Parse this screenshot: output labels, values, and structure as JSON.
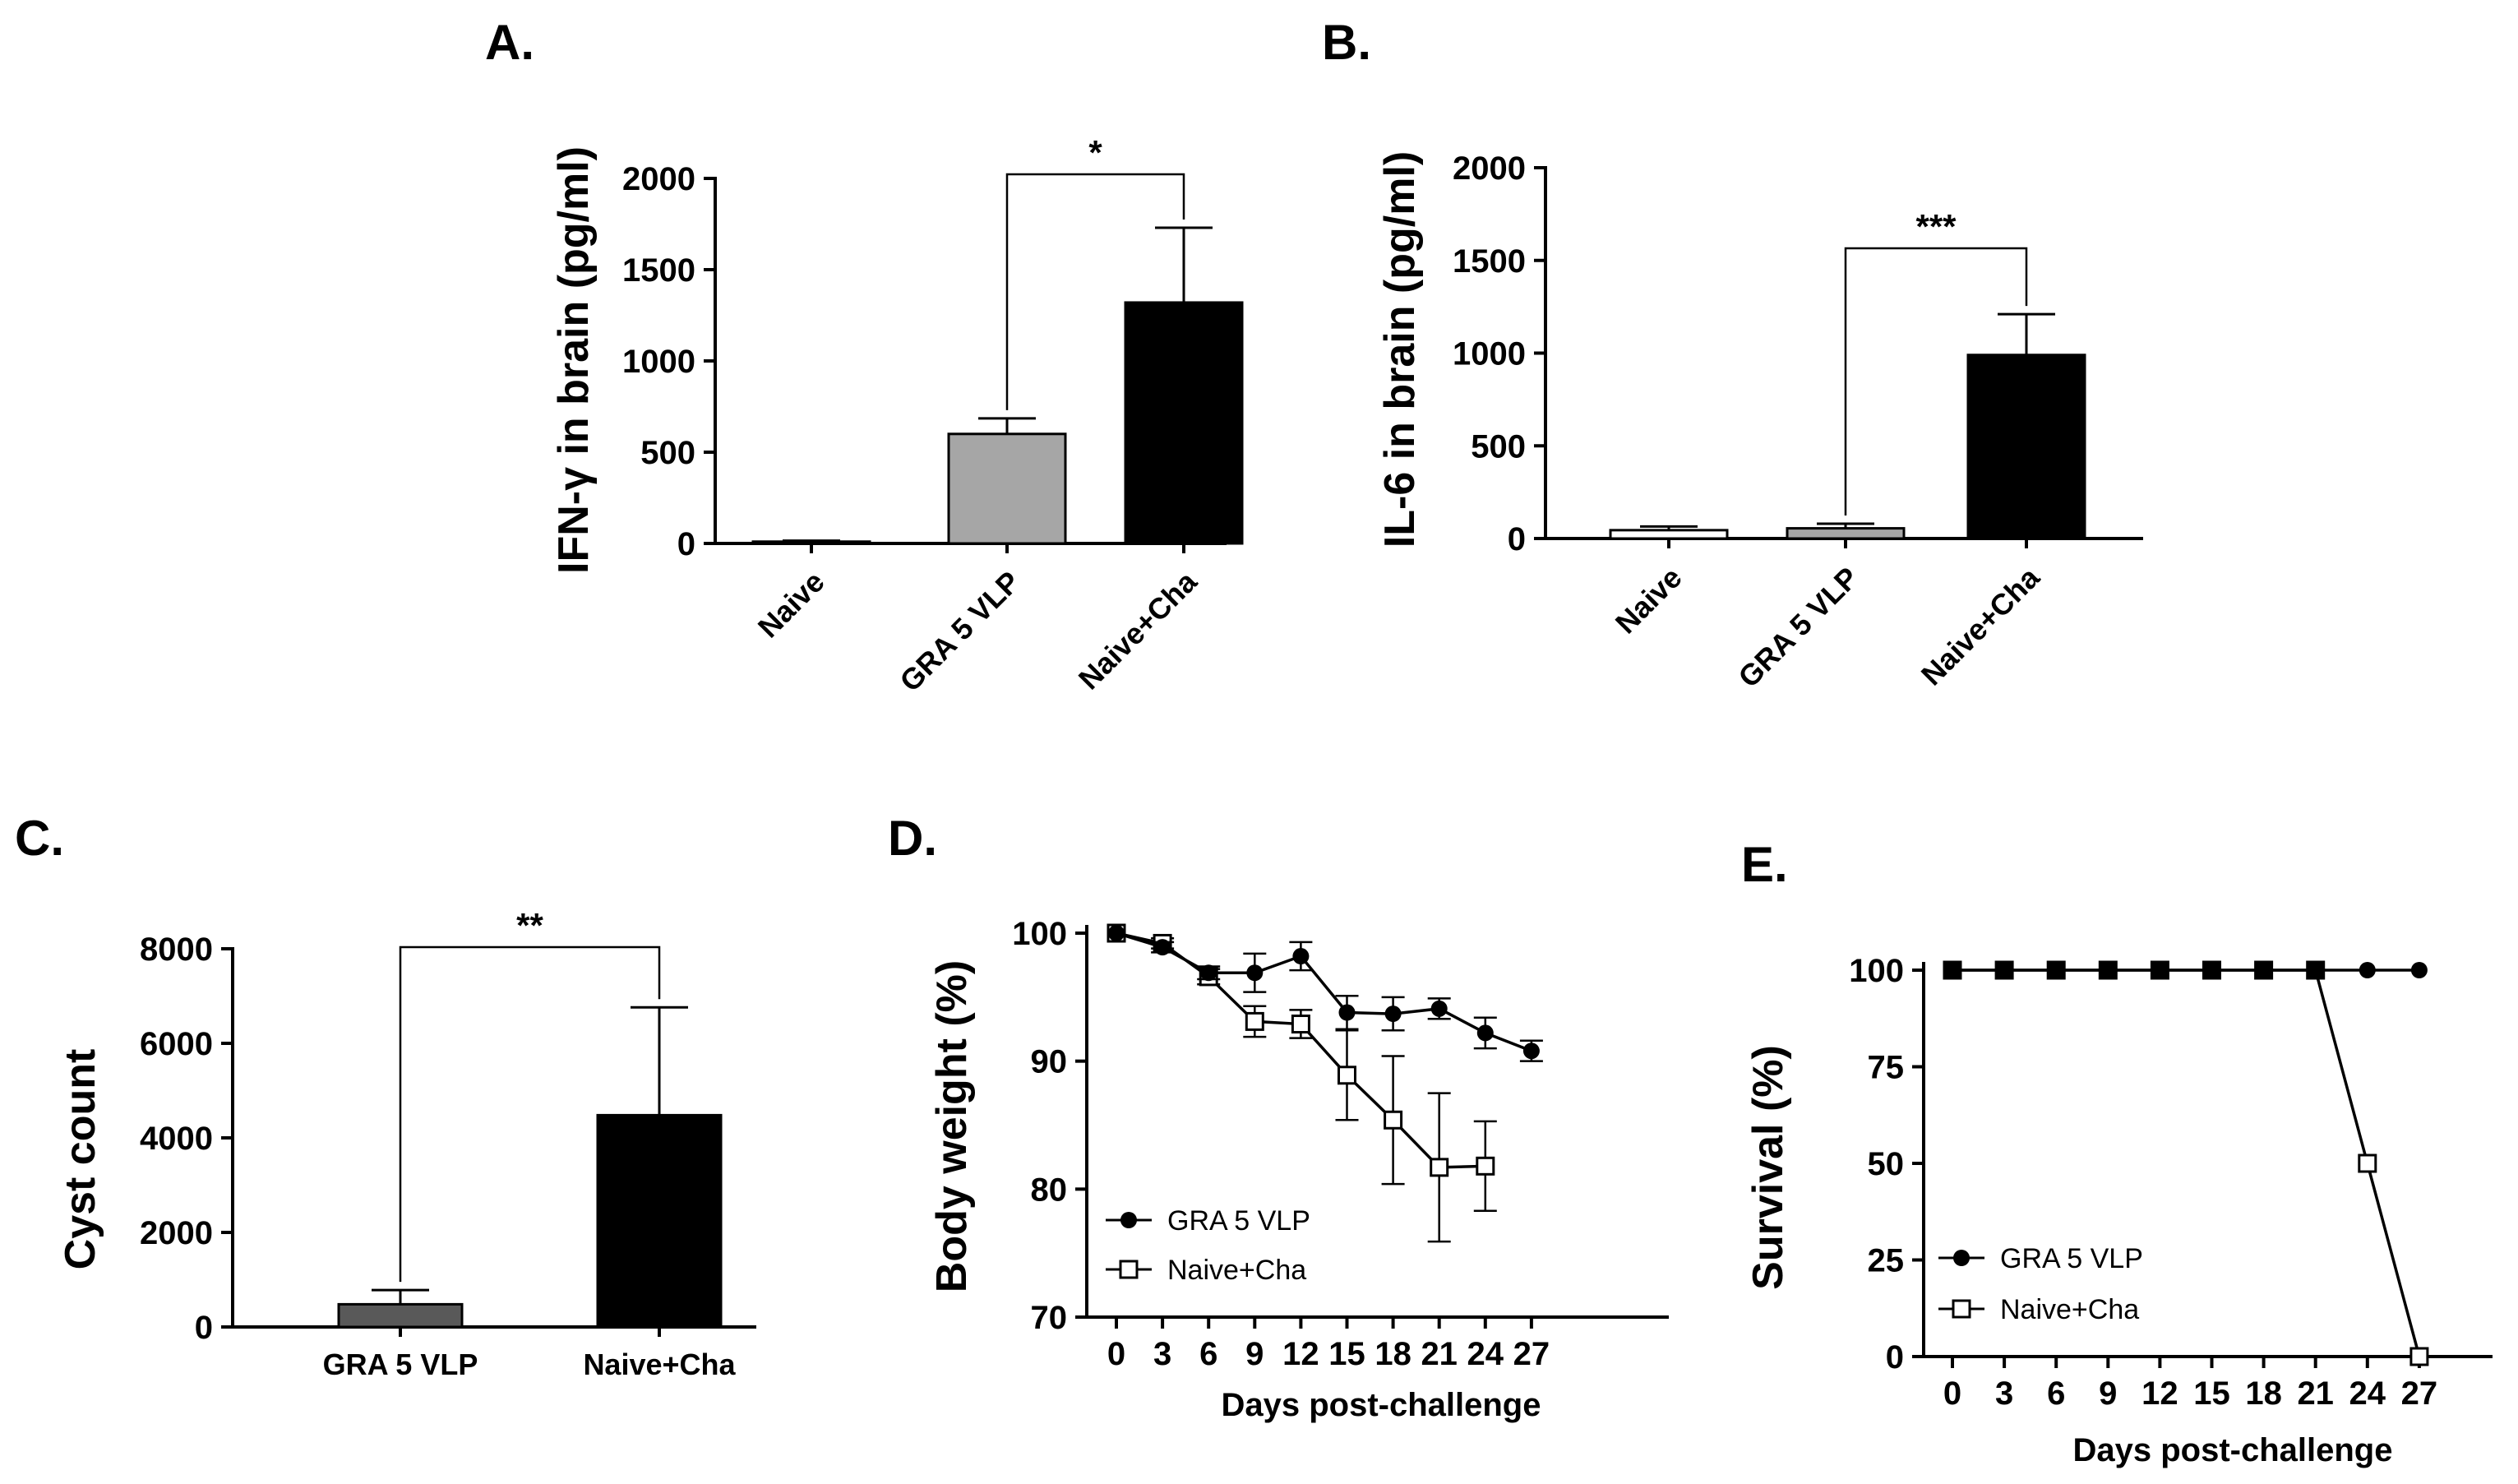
{
  "colors": {
    "axis": "#000000",
    "gra5": "#a6a6a6",
    "gra5_c": "#595959",
    "naive_cha": "#000000",
    "naive": "#ffffff"
  },
  "panels": {
    "A": {
      "label": "A.",
      "chart_data": {
        "type": "bar",
        "categories": [
          "Naive",
          "GRA 5 VLP",
          "Naive+Cha"
        ],
        "values": [
          10,
          600,
          1320
        ],
        "errors": [
          5,
          85,
          410
        ],
        "ylabel": "IFN-γ in brain (pg/ml)",
        "yticks": [
          "0",
          "500",
          "1000",
          "1500",
          "2000"
        ],
        "ylim": [
          0,
          2000
        ],
        "significance": {
          "from": 1,
          "to": 2,
          "text": "*"
        }
      }
    },
    "B": {
      "label": "B.",
      "chart_data": {
        "type": "bar",
        "categories": [
          "Naive",
          "GRA 5 VLP",
          "Naive+Cha"
        ],
        "values": [
          45,
          55,
          990
        ],
        "errors": [
          20,
          25,
          220
        ],
        "ylabel": "IL-6 in brain (pg/ml)",
        "yticks": [
          "0",
          "500",
          "1000",
          "1500",
          "2000"
        ],
        "ylim": [
          0,
          2000
        ],
        "significance": {
          "from": 1,
          "to": 2,
          "text": "***"
        }
      }
    },
    "C": {
      "label": "C.",
      "chart_data": {
        "type": "bar",
        "categories": [
          "GRA 5 VLP",
          "Naive+Cha"
        ],
        "values": [
          480,
          4480
        ],
        "errors": [
          300,
          2280
        ],
        "ylabel": "Cyst count",
        "yticks": [
          "0",
          "2000",
          "4000",
          "6000",
          "8000"
        ],
        "ylim": [
          0,
          8000
        ],
        "significance": {
          "from": 0,
          "to": 1,
          "text": "**"
        }
      }
    },
    "D": {
      "label": "D.",
      "chart_data": {
        "type": "line",
        "x": [
          0,
          3,
          6,
          9,
          12,
          15,
          18,
          21,
          24,
          27
        ],
        "series": [
          {
            "name": "GRA 5 VLP",
            "marker": "filled-circle",
            "values": [
              100,
              98.9,
              96.9,
              96.9,
              98.2,
              93.8,
              93.7,
              94.1,
              92.2,
              90.8
            ],
            "errors": [
              0,
              0.4,
              0.5,
              1.5,
              1.1,
              1.3,
              1.3,
              0.8,
              1.2,
              0.8
            ]
          },
          {
            "name": "Naive+Cha",
            "marker": "open-square",
            "values": [
              100,
              99.2,
              96.6,
              93.1,
              92.9,
              88.9,
              85.4,
              81.7,
              81.8,
              null
            ],
            "errors": [
              0,
              0.4,
              0.6,
              1.2,
              1.1,
              3.5,
              5.0,
              5.8,
              3.5,
              null
            ]
          }
        ],
        "xlabel": "Days post-challenge",
        "ylabel": "Body weight (%)",
        "xticks": [
          "0",
          "3",
          "6",
          "9",
          "12",
          "15",
          "18",
          "21",
          "24",
          "27"
        ],
        "yticks": [
          "70",
          "80",
          "90",
          "100"
        ],
        "ylim": [
          70,
          100
        ],
        "legend": "bottom-left"
      }
    },
    "E": {
      "label": "E.",
      "chart_data": {
        "type": "line",
        "x": [
          0,
          3,
          6,
          9,
          12,
          15,
          18,
          21,
          24,
          27
        ],
        "series": [
          {
            "name": "GRA 5 VLP",
            "marker": "filled-circle",
            "values": [
              100,
              100,
              100,
              100,
              100,
              100,
              100,
              100,
              100,
              100
            ]
          },
          {
            "name": "Naive+Cha",
            "marker": "open-square",
            "values": [
              100,
              100,
              100,
              100,
              100,
              100,
              100,
              100,
              50,
              0
            ]
          }
        ],
        "xlabel": "Days post-challenge",
        "ylabel": "Survival (%)",
        "xticks": [
          "0",
          "3",
          "6",
          "9",
          "12",
          "15",
          "18",
          "21",
          "24",
          "27"
        ],
        "yticks": [
          "0",
          "25",
          "50",
          "75",
          "100"
        ],
        "ylim": [
          0,
          100
        ],
        "legend": "bottom-left"
      }
    }
  }
}
